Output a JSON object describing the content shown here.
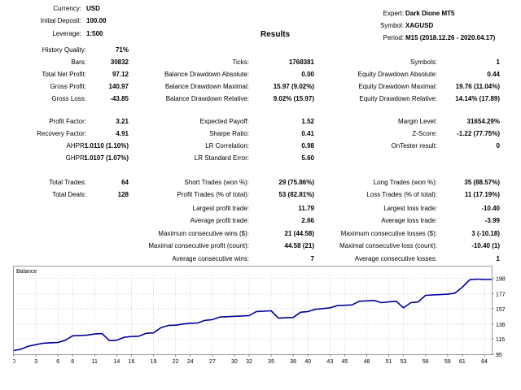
{
  "header": {
    "currency_label": "Currency:",
    "currency_value": "USD",
    "deposit_label": "Initial Deposit:",
    "deposit_value": "100.00",
    "leverage_label": "Leverage:",
    "leverage_value": "1:500",
    "expert_label": "Expert:",
    "expert_value": "Dark Dione MT5",
    "symbol_label": "Symbol:",
    "symbol_value": "XAGUSD",
    "period_label": "Period:",
    "period_value": "M15 (2018.12.26 - 2020.04.17)",
    "title": "Results"
  },
  "stats": {
    "history_quality": {
      "label": "History Quality:",
      "value": "71%"
    },
    "bars": {
      "label": "Bars:",
      "value": "30832"
    },
    "ticks": {
      "label": "Ticks:",
      "value": "1768381"
    },
    "symbols": {
      "label": "Symbols:",
      "value": "1"
    },
    "net_profit": {
      "label": "Total Net Profit:",
      "value": "97.12"
    },
    "bal_dd_abs": {
      "label": "Balance Drawdown Absolute:",
      "value": "0.00"
    },
    "eq_dd_abs": {
      "label": "Equity Drawdown Absolute:",
      "value": "0.44"
    },
    "gross_profit": {
      "label": "Gross Profit:",
      "value": "140.97"
    },
    "bal_dd_max": {
      "label": "Balance Drawdown Maximal:",
      "value": "15.97 (9.02%)"
    },
    "eq_dd_max": {
      "label": "Equity Drawdown Maximal:",
      "value": "19.76 (11.04%)"
    },
    "gross_loss": {
      "label": "Gross Loss:",
      "value": "-43.85"
    },
    "bal_dd_rel": {
      "label": "Balance Drawdown Relative:",
      "value": "9.02% (15.97)"
    },
    "eq_dd_rel": {
      "label": "Equity Drawdown Relative:",
      "value": "14.14% (17.89)"
    },
    "profit_factor": {
      "label": "Profit Factor:",
      "value": "3.21"
    },
    "expected_payoff": {
      "label": "Expected Payoff:",
      "value": "1.52"
    },
    "margin_level": {
      "label": "Margin Level:",
      "value": "31654.29%"
    },
    "recovery_factor": {
      "label": "Recovery Factor:",
      "value": "4.91"
    },
    "sharpe": {
      "label": "Sharpe Ratio:",
      "value": "0.41"
    },
    "zscore": {
      "label": "Z-Score:",
      "value": "-1.22 (77.75%)"
    },
    "ahpr": {
      "label": "AHPR:",
      "value": "1.0110 (1.10%)"
    },
    "lr_corr": {
      "label": "LR Correlation:",
      "value": "0.98"
    },
    "ontester": {
      "label": "OnTester result:",
      "value": "0"
    },
    "ghpr": {
      "label": "GHPR:",
      "value": "1.0107 (1.07%)"
    },
    "lr_err": {
      "label": "LR Standard Error:",
      "value": "5.60"
    },
    "total_trades": {
      "label": "Total Trades:",
      "value": "64"
    },
    "short_trades": {
      "label": "Short Trades (won %):",
      "value": "29 (75.86%)"
    },
    "long_trades": {
      "label": "Long Trades (won %):",
      "value": "35 (88.57%)"
    },
    "total_deals": {
      "label": "Total Deals:",
      "value": "128"
    },
    "profit_trades": {
      "label": "Profit Trades (% of total):",
      "value": "53 (82.81%)"
    },
    "loss_trades": {
      "label": "Loss Trades (% of total):",
      "value": "11 (17.19%)"
    },
    "largest_profit": {
      "label": "Largest profit trade:",
      "value": "11.79"
    },
    "largest_loss": {
      "label": "Largest loss trade:",
      "value": "-10.40"
    },
    "avg_profit": {
      "label": "Average profit trade:",
      "value": "2.66"
    },
    "avg_loss": {
      "label": "Average loss trade:",
      "value": "-3.99"
    },
    "max_cons_wins": {
      "label": "Maximum consecutive wins ($):",
      "value": "21 (44.58)"
    },
    "max_cons_losses": {
      "label": "Maximum consecutive losses ($):",
      "value": "3 (-10.18)"
    },
    "max_cons_profit": {
      "label": "Maximal consecutive profit (count):",
      "value": "44.58 (21)"
    },
    "max_cons_loss": {
      "label": "Maximal consecutive loss (count):",
      "value": "-10.40 (1)"
    },
    "avg_cons_wins": {
      "label": "Average consecutive wins:",
      "value": "7"
    },
    "avg_cons_losses": {
      "label": "Average consecutive losses:",
      "value": "1"
    }
  },
  "chart_data": {
    "type": "line",
    "title": "Balance",
    "xlabel": "",
    "ylabel": "",
    "x_ticks": [
      "0",
      "3",
      "6",
      "8",
      "11",
      "14",
      "16",
      "19",
      "22",
      "24",
      "27",
      "30",
      "32",
      "35",
      "38",
      "40",
      "43",
      "45",
      "48",
      "51",
      "53",
      "56",
      "59",
      "61",
      "64"
    ],
    "y_ticks": [
      95,
      116,
      136,
      157,
      177,
      198
    ],
    "xlim": [
      0,
      65
    ],
    "ylim": [
      95,
      202
    ],
    "grid": true,
    "line_color": "#00009c",
    "series": [
      {
        "x": [
          0,
          1,
          2,
          3,
          4,
          5,
          6,
          7,
          8,
          9,
          10,
          11,
          12,
          13,
          14,
          15,
          16,
          17,
          18,
          19,
          20,
          21,
          22,
          23,
          24,
          25,
          26,
          27,
          28,
          29,
          30,
          31,
          32,
          33,
          34,
          35,
          36,
          37,
          38,
          39,
          40,
          41,
          42,
          43,
          44,
          45,
          46,
          47,
          48,
          49,
          50,
          51,
          52,
          53,
          54,
          55,
          56,
          57,
          58,
          59,
          60,
          61,
          62,
          63,
          64,
          65
        ],
        "values": [
          100,
          102,
          106,
          108,
          110,
          110.5,
          111,
          114,
          120,
          120.5,
          121,
          122.5,
          123,
          113.5,
          114,
          118,
          119,
          119.5,
          123.5,
          124,
          131,
          134,
          134.5,
          136,
          137,
          137.5,
          141,
          142,
          145.5,
          146,
          146.5,
          147,
          147.5,
          153,
          153.5,
          154,
          144,
          144.5,
          145,
          152,
          153,
          156,
          157,
          158,
          161,
          161.5,
          162,
          167,
          167.5,
          168,
          165,
          166,
          167,
          158,
          165,
          166,
          175,
          175.5,
          176,
          176.5,
          178,
          186,
          196,
          197,
          196.5,
          196.5
        ]
      }
    ]
  }
}
